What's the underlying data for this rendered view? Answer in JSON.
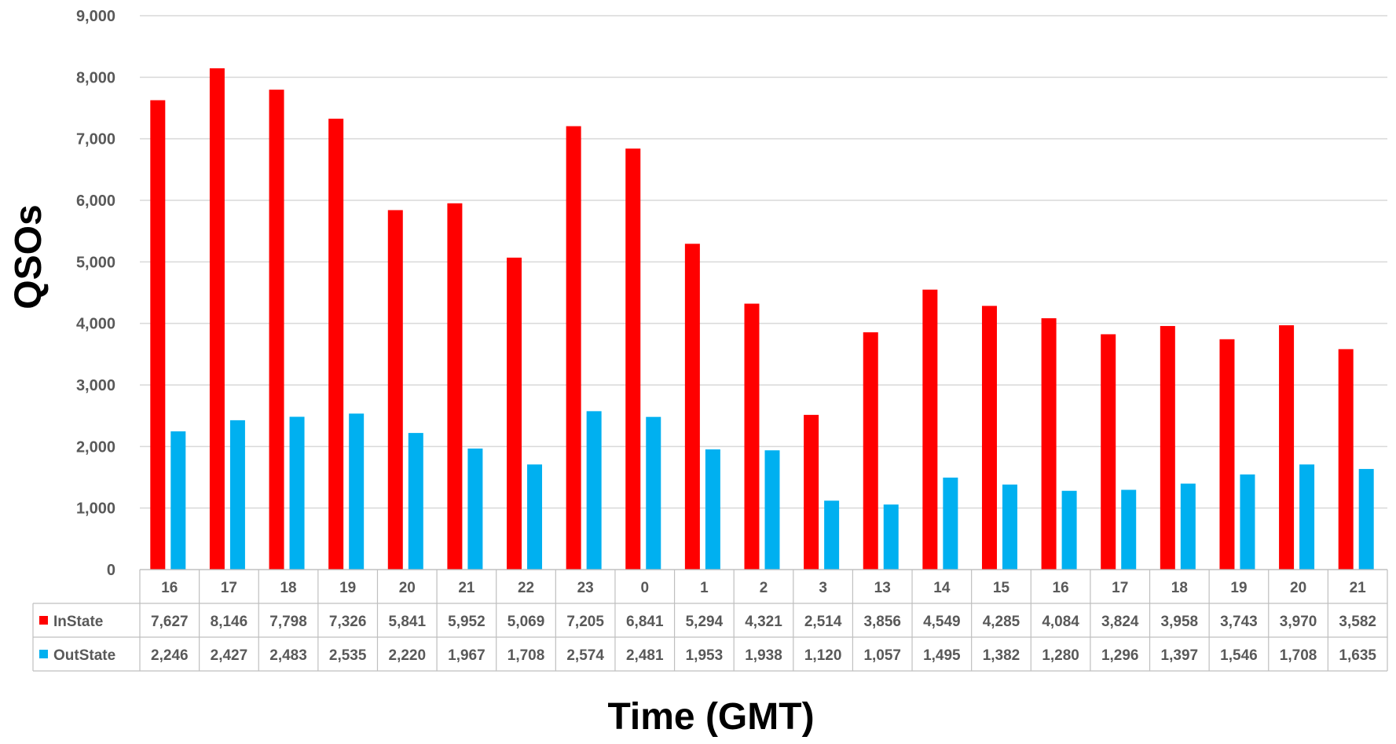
{
  "chart_data": {
    "type": "bar",
    "title": "",
    "xlabel": "Time (GMT)",
    "ylabel": "QSOs",
    "ylim": [
      0,
      9000
    ],
    "yticks": [
      "0",
      "1,000",
      "2,000",
      "3,000",
      "4,000",
      "5,000",
      "6,000",
      "7,000",
      "8,000",
      "9,000"
    ],
    "grid": true,
    "legend": "data-table",
    "categories": [
      "16",
      "17",
      "18",
      "19",
      "20",
      "21",
      "22",
      "23",
      "0",
      "1",
      "2",
      "3",
      "13",
      "14",
      "15",
      "16",
      "17",
      "18",
      "19",
      "20",
      "21"
    ],
    "series": [
      {
        "name": "InState",
        "color": "#ff0000",
        "values": [
          7627,
          8146,
          7798,
          7326,
          5841,
          5952,
          5069,
          7205,
          6841,
          5294,
          4321,
          2514,
          3856,
          4549,
          4285,
          4084,
          3824,
          3958,
          3743,
          3970,
          3582
        ],
        "labels": [
          "7,627",
          "8,146",
          "7,798",
          "7,326",
          "5,841",
          "5,952",
          "5,069",
          "7,205",
          "6,841",
          "5,294",
          "4,321",
          "2,514",
          "3,856",
          "4,549",
          "4,285",
          "4,084",
          "3,824",
          "3,958",
          "3,743",
          "3,970",
          "3,582"
        ]
      },
      {
        "name": "OutState",
        "color": "#00b0f0",
        "values": [
          2246,
          2427,
          2483,
          2535,
          2220,
          1967,
          1708,
          2574,
          2481,
          1953,
          1938,
          1120,
          1057,
          1495,
          1382,
          1280,
          1296,
          1397,
          1546,
          1708,
          1635
        ],
        "labels": [
          "2,246",
          "2,427",
          "2,483",
          "2,535",
          "2,220",
          "1,967",
          "1,708",
          "2,574",
          "2,481",
          "1,953",
          "1,938",
          "1,120",
          "1,057",
          "1,495",
          "1,382",
          "1,280",
          "1,296",
          "1,397",
          "1,546",
          "1,708",
          "1,635"
        ]
      }
    ]
  }
}
